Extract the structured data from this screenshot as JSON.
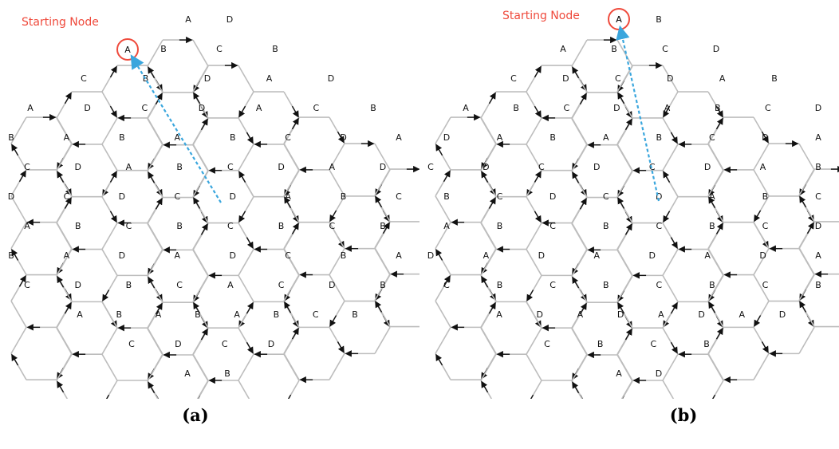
{
  "panels": [
    {
      "id": "a",
      "caption": "(a)",
      "start_label": "Starting Node",
      "start_node": "A",
      "rows": [
        [
          "A",
          "D"
        ],
        [
          "B",
          "C",
          "B"
        ],
        [
          "C",
          "B",
          "D",
          "A",
          "D"
        ],
        [
          "A",
          "D",
          "C",
          "D",
          "A",
          "C",
          "B"
        ],
        [
          "B",
          "A",
          "B",
          "A",
          "B",
          "C",
          "D",
          "A"
        ],
        [
          "C",
          "D",
          "A",
          "B",
          "C",
          "D",
          "A",
          "D"
        ],
        [
          "D",
          "C",
          "D",
          "C",
          "D",
          "A",
          "B",
          "C"
        ],
        [
          "A",
          "B",
          "C",
          "B",
          "C",
          "B",
          "C",
          "B"
        ],
        [
          "B",
          "A",
          "D",
          "A",
          "D",
          "C",
          "B",
          "A"
        ],
        [
          "C",
          "D",
          "B",
          "C",
          "A",
          "C",
          "D",
          "B"
        ],
        [
          "A",
          "B",
          "A",
          "B",
          "A",
          "B",
          "C",
          "B"
        ],
        [
          "C",
          "D",
          "C",
          "D"
        ],
        [
          "A",
          "B"
        ]
      ],
      "colors": {
        "path": "#3aa6dd",
        "start_marker": "#ef4a3c",
        "edge": "#bdbdbd",
        "arrow": "#111111"
      }
    },
    {
      "id": "b",
      "caption": "(b)",
      "start_label": "Starting Node",
      "start_node": "A",
      "rows": [
        [
          "A",
          "B"
        ],
        [
          "A",
          "B",
          "C",
          "D"
        ],
        [
          "C",
          "D",
          "C",
          "D",
          "A",
          "B"
        ],
        [
          "A",
          "B",
          "C",
          "D",
          "A",
          "B",
          "C",
          "D"
        ],
        [
          "D",
          "A",
          "B",
          "A",
          "B",
          "C",
          "D",
          "A"
        ],
        [
          "C",
          "D",
          "C",
          "D",
          "C",
          "D",
          "A",
          "B"
        ],
        [
          "B",
          "C",
          "D",
          "C",
          "D",
          "A",
          "B",
          "C"
        ],
        [
          "A",
          "B",
          "C",
          "B",
          "C",
          "B",
          "C",
          "D"
        ],
        [
          "D",
          "A",
          "D",
          "A",
          "D",
          "A",
          "D",
          "A"
        ],
        [
          "C",
          "B",
          "C",
          "B",
          "C",
          "B",
          "C",
          "B"
        ],
        [
          "A",
          "D",
          "A",
          "D",
          "A",
          "D",
          "A",
          "D"
        ],
        [
          "C",
          "B",
          "C",
          "B"
        ],
        [
          "A",
          "D"
        ]
      ],
      "colors": {
        "path": "#3aa6dd",
        "start_marker": "#ef4a3c",
        "edge": "#bdbdbd",
        "arrow": "#111111"
      }
    }
  ]
}
